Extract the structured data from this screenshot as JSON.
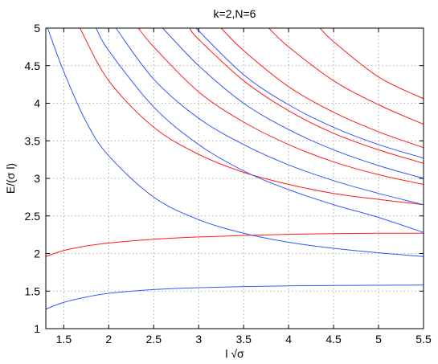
{
  "chart_data": {
    "type": "line",
    "title": "k=2,N=6",
    "xlabel": "l √σ",
    "ylabel": "E/(σ l)",
    "xlim": [
      1.3,
      5.5
    ],
    "ylim": [
      1,
      5
    ],
    "xticks": [
      "1.5",
      "2",
      "2.5",
      "3",
      "3.5",
      "4",
      "4.5",
      "5",
      "5.5"
    ],
    "yticks": [
      "1",
      "1.5",
      "2",
      "2.5",
      "3",
      "3.5",
      "4",
      "4.5",
      "5"
    ],
    "grid": true,
    "colors": {
      "blue": "#3355ff",
      "red": "#ff1a1a"
    },
    "series": [
      {
        "color": "blue",
        "x": [
          1.3,
          1.5,
          1.75,
          2.0,
          2.5,
          3.0,
          3.5,
          4.0,
          4.5,
          5.0,
          5.5
        ],
        "y": [
          1.26,
          1.35,
          1.42,
          1.47,
          1.52,
          1.545,
          1.56,
          1.57,
          1.575,
          1.578,
          1.58
        ]
      },
      {
        "color": "red",
        "x": [
          1.3,
          1.5,
          1.75,
          2.0,
          2.5,
          3.0,
          3.5,
          4.0,
          4.5,
          5.0,
          5.5
        ],
        "y": [
          1.96,
          2.04,
          2.1,
          2.14,
          2.19,
          2.22,
          2.24,
          2.255,
          2.265,
          2.27,
          2.27
        ]
      },
      {
        "color": "blue",
        "x": [
          1.32,
          1.5,
          1.75,
          2.0,
          2.5,
          3.0,
          3.5,
          4.0,
          4.5,
          5.0,
          5.5
        ],
        "y": [
          5.0,
          4.42,
          3.75,
          3.3,
          2.75,
          2.45,
          2.27,
          2.15,
          2.07,
          2.01,
          1.96
        ]
      },
      {
        "color": "red",
        "x": [
          1.68,
          2.0,
          2.5,
          3.0,
          3.5,
          4.0,
          4.5,
          5.0,
          5.5
        ],
        "y": [
          5.0,
          4.3,
          3.68,
          3.32,
          3.08,
          2.92,
          2.8,
          2.72,
          2.65
        ]
      },
      {
        "color": "blue",
        "x": [
          1.86,
          2.0,
          2.5,
          3.0,
          3.5,
          4.0,
          4.5,
          5.0,
          5.5
        ],
        "y": [
          5.0,
          4.7,
          3.95,
          3.45,
          3.1,
          2.85,
          2.65,
          2.48,
          2.28
        ]
      },
      {
        "color": "blue",
        "x": [
          2.08,
          2.5,
          3.0,
          3.5,
          4.0,
          4.5,
          5.0,
          5.5
        ],
        "y": [
          5.0,
          4.32,
          3.8,
          3.45,
          3.18,
          2.97,
          2.8,
          2.65
        ]
      },
      {
        "color": "red",
        "x": [
          2.33,
          2.5,
          3.0,
          3.5,
          4.0,
          4.5,
          5.0,
          5.5
        ],
        "y": [
          5.0,
          4.75,
          4.15,
          3.75,
          3.45,
          3.22,
          3.05,
          2.92
        ]
      },
      {
        "color": "blue",
        "x": [
          2.6,
          3.0,
          3.5,
          4.0,
          4.5,
          5.0,
          5.5
        ],
        "y": [
          5.0,
          4.5,
          4.0,
          3.65,
          3.38,
          3.17,
          3.0
        ]
      },
      {
        "color": "red",
        "x": [
          2.9,
          3.0,
          3.5,
          4.0,
          4.5,
          5.0,
          5.5
        ],
        "y": [
          5.0,
          4.85,
          4.3,
          3.9,
          3.6,
          3.38,
          3.2
        ]
      },
      {
        "color": "blue",
        "x": [
          2.97,
          3.5,
          4.0,
          4.5,
          5.0,
          5.5
        ],
        "y": [
          5.0,
          4.38,
          3.98,
          3.68,
          3.45,
          3.27
        ]
      },
      {
        "color": "red",
        "x": [
          3.25,
          3.5,
          4.0,
          4.5,
          5.0,
          5.5
        ],
        "y": [
          5.0,
          4.7,
          4.22,
          3.88,
          3.62,
          3.41
        ]
      },
      {
        "color": "red",
        "x": [
          3.78,
          4.0,
          4.5,
          5.0,
          5.5
        ],
        "y": [
          5.0,
          4.75,
          4.3,
          3.98,
          3.72
        ]
      },
      {
        "color": "red",
        "x": [
          4.35,
          4.5,
          5.0,
          5.5
        ],
        "y": [
          5.0,
          4.82,
          4.35,
          4.06
        ]
      }
    ]
  }
}
